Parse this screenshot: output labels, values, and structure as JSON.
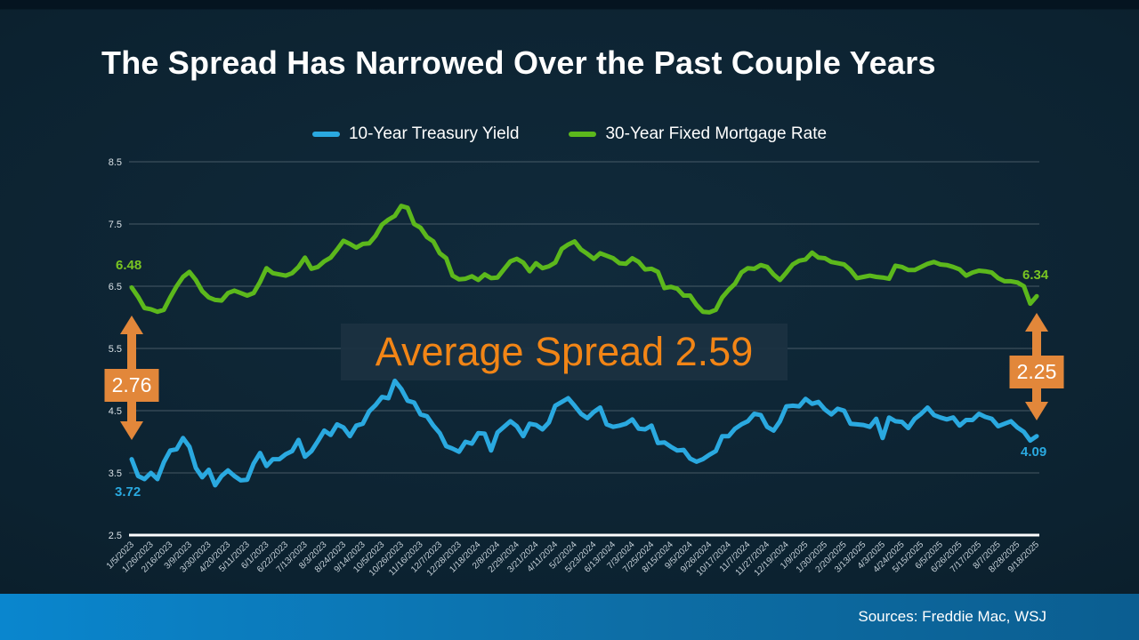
{
  "slide": {
    "title": "The Spread Has Narrowed Over the Past Couple Years"
  },
  "colors": {
    "treasury_blue": "#2aa9e0",
    "mortgage_green": "#5cb81c",
    "spread_orange": "#e2873a",
    "banner_text_orange": "#f28516",
    "background_navy": "#0c2230",
    "footer_blue_left": "#0a86ce",
    "footer_blue_right": "#0b5e91"
  },
  "legend": {
    "items": [
      {
        "label": "10-Year Treasury Yield",
        "color": "#2aa9e0"
      },
      {
        "label": "30-Year Fixed Mortgage Rate",
        "color": "#5cb81c"
      }
    ]
  },
  "annotations": {
    "mortgage_start_value": "6.48",
    "treasury_start_value": "3.72",
    "mortgage_end_value": "6.34",
    "treasury_end_value": "4.09",
    "left_spread_value": "2.76",
    "right_spread_value": "2.25",
    "average_spread_label": "Average Spread 2.59"
  },
  "footer": {
    "sources": "Sources: Freddie Mac, WSJ"
  },
  "chart_data": {
    "type": "line",
    "title": "The Spread Has Narrowed Over the Past Couple Years",
    "xlabel": "",
    "ylabel": "",
    "ylim": [
      2.5,
      8.5
    ],
    "y_ticks": [
      2.5,
      3.5,
      4.5,
      5.5,
      6.5,
      7.5,
      8.5
    ],
    "grid": "horizontal",
    "legend_position": "top-center",
    "points_per_tick": 3,
    "x_tick_labels": [
      "1/5/2023",
      "1/26/2023",
      "2/16/2023",
      "3/9/2023",
      "3/30/2023",
      "4/20/2023",
      "5/11/2023",
      "6/1/2023",
      "6/22/2023",
      "7/13/2023",
      "8/3/2023",
      "8/24/2023",
      "9/14/2023",
      "10/5/2023",
      "10/26/2023",
      "11/16/2023",
      "12/7/2023",
      "12/28/2023",
      "1/18/2024",
      "2/8/2024",
      "2/29/2024",
      "3/21/2024",
      "4/11/2024",
      "5/2/2024",
      "5/23/2024",
      "6/13/2024",
      "7/3/2024",
      "7/25/2024",
      "8/15/2024",
      "9/5/2024",
      "9/26/2024",
      "10/17/2024",
      "11/7/2024",
      "11/27/2024",
      "12/19/2024",
      "1/9/2025",
      "1/30/2025",
      "2/20/2025",
      "3/13/2025",
      "4/3/2025",
      "4/24/2025",
      "5/15/2025",
      "6/5/2025",
      "6/26/2025",
      "7/17/2025",
      "8/7/2025",
      "8/28/2025",
      "9/18/2025"
    ],
    "series": [
      {
        "id": "treasury",
        "name": "10-Year Treasury Yield",
        "color": "#2aa9e0",
        "start_label": 3.72,
        "end_label": 4.09,
        "values": [
          3.72,
          3.45,
          3.4,
          3.5,
          3.4,
          3.67,
          3.86,
          3.88,
          4.06,
          3.92,
          3.58,
          3.43,
          3.55,
          3.3,
          3.45,
          3.54,
          3.45,
          3.38,
          3.39,
          3.65,
          3.82,
          3.61,
          3.72,
          3.72,
          3.8,
          3.85,
          4.03,
          3.76,
          3.85,
          4.01,
          4.18,
          4.11,
          4.28,
          4.23,
          4.09,
          4.26,
          4.29,
          4.49,
          4.59,
          4.72,
          4.7,
          4.98,
          4.85,
          4.66,
          4.63,
          4.44,
          4.41,
          4.26,
          4.14,
          3.93,
          3.89,
          3.84,
          4.0,
          3.97,
          4.14,
          4.13,
          3.86,
          4.15,
          4.24,
          4.33,
          4.25,
          4.09,
          4.29,
          4.27,
          4.2,
          4.31,
          4.58,
          4.64,
          4.7,
          4.58,
          4.45,
          4.38,
          4.48,
          4.55,
          4.28,
          4.24,
          4.26,
          4.29,
          4.36,
          4.21,
          4.2,
          4.26,
          3.98,
          3.99,
          3.92,
          3.86,
          3.87,
          3.73,
          3.68,
          3.72,
          3.79,
          3.85,
          4.09,
          4.09,
          4.21,
          4.28,
          4.33,
          4.45,
          4.43,
          4.24,
          4.18,
          4.33,
          4.57,
          4.58,
          4.57,
          4.69,
          4.61,
          4.64,
          4.52,
          4.44,
          4.53,
          4.5,
          4.29,
          4.28,
          4.27,
          4.24,
          4.37,
          4.06,
          4.39,
          4.33,
          4.32,
          4.22,
          4.37,
          4.45,
          4.55,
          4.43,
          4.39,
          4.36,
          4.39,
          4.26,
          4.35,
          4.35,
          4.45,
          4.4,
          4.37,
          4.25,
          4.29,
          4.33,
          4.23,
          4.16,
          4.02,
          4.09
        ]
      },
      {
        "id": "mortgage",
        "name": "30-Year Fixed Mortgage Rate",
        "color": "#5cb81c",
        "start_label": 6.48,
        "end_label": 6.34,
        "values": [
          6.48,
          6.33,
          6.15,
          6.13,
          6.09,
          6.12,
          6.32,
          6.5,
          6.65,
          6.73,
          6.6,
          6.42,
          6.32,
          6.28,
          6.27,
          6.39,
          6.43,
          6.39,
          6.35,
          6.39,
          6.57,
          6.79,
          6.71,
          6.69,
          6.67,
          6.71,
          6.81,
          6.96,
          6.78,
          6.81,
          6.9,
          6.96,
          7.09,
          7.23,
          7.18,
          7.12,
          7.18,
          7.19,
          7.31,
          7.49,
          7.57,
          7.63,
          7.79,
          7.76,
          7.5,
          7.44,
          7.29,
          7.22,
          7.03,
          6.95,
          6.67,
          6.61,
          6.62,
          6.66,
          6.6,
          6.69,
          6.63,
          6.64,
          6.77,
          6.9,
          6.94,
          6.88,
          6.74,
          6.87,
          6.79,
          6.82,
          6.88,
          7.1,
          7.17,
          7.22,
          7.09,
          7.02,
          6.94,
          7.03,
          6.99,
          6.95,
          6.87,
          6.86,
          6.95,
          6.89,
          6.77,
          6.78,
          6.73,
          6.47,
          6.49,
          6.46,
          6.35,
          6.35,
          6.2,
          6.09,
          6.08,
          6.12,
          6.32,
          6.44,
          6.54,
          6.72,
          6.79,
          6.78,
          6.84,
          6.81,
          6.69,
          6.6,
          6.72,
          6.85,
          6.91,
          6.93,
          7.04,
          6.96,
          6.95,
          6.89,
          6.87,
          6.85,
          6.76,
          6.63,
          6.65,
          6.67,
          6.65,
          6.64,
          6.62,
          6.83,
          6.81,
          6.76,
          6.76,
          6.81,
          6.86,
          6.89,
          6.85,
          6.84,
          6.81,
          6.77,
          6.67,
          6.72,
          6.75,
          6.74,
          6.72,
          6.63,
          6.58,
          6.58,
          6.56,
          6.5,
          6.22,
          6.34
        ]
      }
    ],
    "annotations": {
      "left_spread": 2.76,
      "right_spread": 2.25,
      "average_spread": 2.59
    }
  }
}
